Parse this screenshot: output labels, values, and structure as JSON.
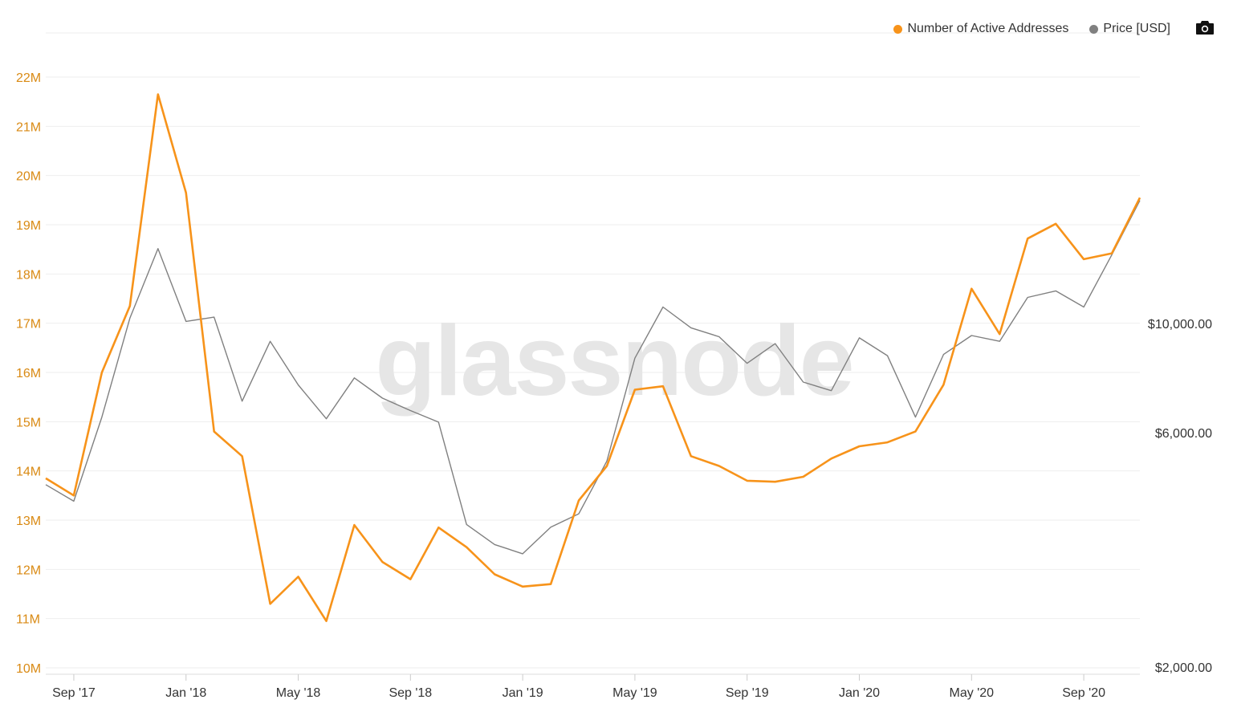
{
  "watermark": "glassnode",
  "legend": {
    "active_label": "Number of Active Addresses",
    "price_label": "Price [USD]"
  },
  "colors": {
    "active": "#f7931a",
    "active_axis": "#d98a14",
    "price": "#808080",
    "grid": "#eeeeee",
    "axis_text": "#333333"
  },
  "icons": {
    "export": "camera-icon"
  },
  "chart_data": {
    "type": "line",
    "x": [
      "2017-08",
      "2017-09",
      "2017-10",
      "2017-11",
      "2017-12",
      "2018-01",
      "2018-02",
      "2018-03",
      "2018-04",
      "2018-05",
      "2018-06",
      "2018-07",
      "2018-08",
      "2018-09",
      "2018-10",
      "2018-11",
      "2018-12",
      "2019-01",
      "2019-02",
      "2019-03",
      "2019-04",
      "2019-05",
      "2019-06",
      "2019-07",
      "2019-08",
      "2019-09",
      "2019-10",
      "2019-11",
      "2019-12",
      "2020-01",
      "2020-02",
      "2020-03",
      "2020-04",
      "2020-05",
      "2020-06",
      "2020-07",
      "2020-08",
      "2020-09",
      "2020-10",
      "2020-11"
    ],
    "xticks": [
      "Sep '17",
      "Jan '18",
      "May '18",
      "Sep '18",
      "Jan '19",
      "May '19",
      "Sep '19",
      "Jan '20",
      "May '20",
      "Sep '20"
    ],
    "xtick_dates": [
      "2017-09",
      "2018-01",
      "2018-05",
      "2018-09",
      "2019-01",
      "2019-05",
      "2019-09",
      "2020-01",
      "2020-05",
      "2020-09"
    ],
    "series": [
      {
        "name": "Number of Active Addresses",
        "axis": "left",
        "values": [
          13.85,
          13.5,
          16.0,
          17.35,
          21.65,
          19.65,
          14.8,
          14.3,
          11.3,
          11.85,
          10.95,
          12.9,
          12.15,
          11.8,
          12.85,
          12.45,
          11.9,
          11.65,
          11.7,
          13.4,
          14.1,
          15.65,
          15.72,
          14.3,
          14.1,
          13.8,
          13.78,
          13.88,
          14.25,
          14.5,
          14.58,
          14.8,
          15.75,
          17.7,
          16.78,
          18.72,
          19.02,
          18.3,
          18.42,
          19.55
        ]
      },
      {
        "name": "Price [USD]",
        "axis": "right",
        "values": [
          4700,
          4350,
          6450,
          10250,
          14200,
          10100,
          10300,
          6950,
          9200,
          7500,
          6400,
          7750,
          7050,
          6650,
          6300,
          3900,
          3550,
          3400,
          3850,
          4100,
          5250,
          8500,
          10800,
          9800,
          9400,
          8300,
          9100,
          7600,
          7300,
          9350,
          8600,
          6450,
          8650,
          9450,
          9200,
          11300,
          11650,
          10800,
          13800,
          17800
        ]
      }
    ],
    "y_left": {
      "ticks": [
        "10M",
        "11M",
        "12M",
        "13M",
        "14M",
        "15M",
        "16M",
        "17M",
        "18M",
        "19M",
        "20M",
        "21M",
        "22M"
      ],
      "range": [
        10,
        22
      ]
    },
    "y_right": {
      "ticks": [
        "$2,000.00",
        "$6,000.00",
        "$10,000.00"
      ],
      "tick_values": [
        2000,
        6000,
        10000
      ],
      "scale": "log"
    },
    "grid": true,
    "legend_position": "top-right"
  }
}
